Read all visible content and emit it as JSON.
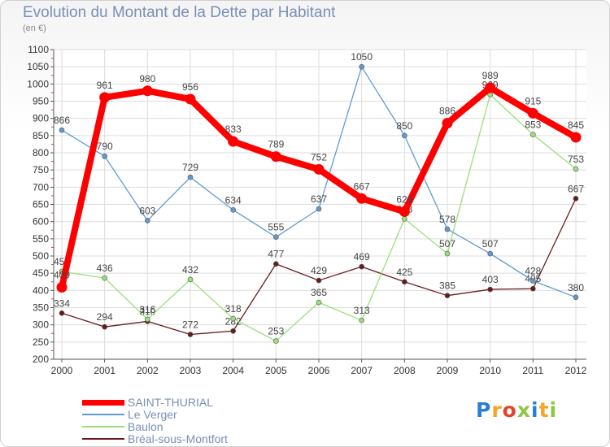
{
  "title": "Evolution du Montant de la Dette par Habitant",
  "unit": "(en €)",
  "brand": {
    "letters": [
      "P",
      "r",
      "o",
      "x",
      "i",
      "t",
      "i"
    ],
    "colors": [
      "#2a7fd4",
      "#f5a623",
      "#e0452b",
      "#8dc63f",
      "#2a7fd4",
      "#f5a623",
      "#8dc63f"
    ]
  },
  "chart_data": {
    "type": "line",
    "x": [
      "2000",
      "2001",
      "2002",
      "2003",
      "2004",
      "2005",
      "2006",
      "2007",
      "2008",
      "2009",
      "2010",
      "2011",
      "2012"
    ],
    "ylim": [
      200,
      1100
    ],
    "yticks": [
      200,
      250,
      300,
      350,
      400,
      450,
      500,
      550,
      600,
      650,
      700,
      750,
      800,
      850,
      900,
      950,
      1000,
      1050,
      1100
    ],
    "grid": true,
    "legend_position": "bottom-left",
    "series": [
      {
        "name": "SAINT-THURIAL",
        "color": "#ff0000",
        "values": [
          409,
          961,
          980,
          956,
          833,
          789,
          752,
          667,
          629,
          886,
          989,
          915,
          845
        ],
        "labels": [
          "409",
          "961",
          "980",
          "956",
          "833",
          "789",
          "752",
          "667",
          "629",
          "886",
          "989",
          "915",
          "845"
        ]
      },
      {
        "name": "Le Verger",
        "color": "#5f9bd0",
        "values": [
          866,
          790,
          603,
          729,
          634,
          555,
          637,
          1050,
          850,
          578,
          507,
          428,
          380
        ],
        "labels": [
          "866",
          "790",
          "603",
          "729",
          "634",
          "555",
          "637",
          "1050",
          "850",
          "578",
          "507",
          "428",
          "380"
        ]
      },
      {
        "name": "Baulon",
        "color": "#99e07a",
        "values": [
          455,
          436,
          316,
          432,
          318,
          253,
          365,
          313,
          608,
          507,
          969,
          853,
          753
        ],
        "labels": [
          "455",
          "436",
          "316",
          "432",
          "318",
          "253",
          "365",
          "313",
          "608",
          "507",
          "969",
          "853",
          "753"
        ]
      },
      {
        "name": "Bréal-sous-Montfort",
        "color": "#6b1a1a",
        "values": [
          334,
          294,
          310,
          272,
          282,
          477,
          429,
          469,
          425,
          385,
          403,
          405,
          667
        ],
        "labels": [
          "334",
          "294",
          "310",
          "272",
          "282",
          "477",
          "429",
          "469",
          "425",
          "385",
          "403",
          "405",
          "667"
        ]
      }
    ]
  }
}
